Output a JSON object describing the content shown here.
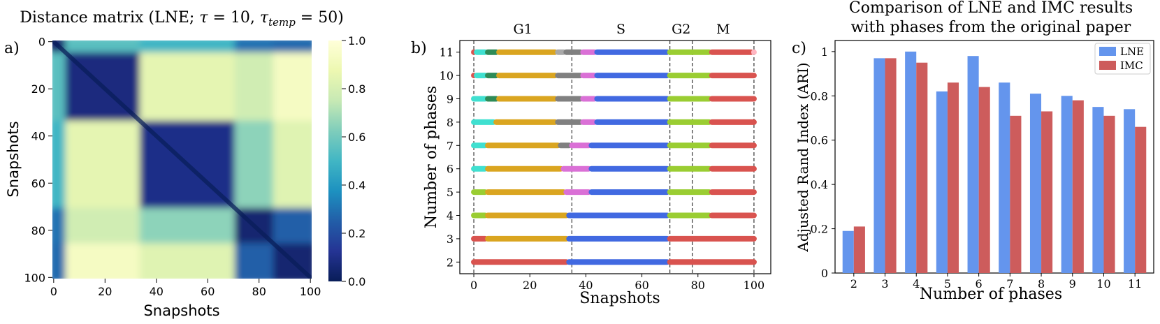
{
  "panels": {
    "a_label": "a)",
    "b_label": "b)",
    "c_label": "c)"
  },
  "chart_data": [
    {
      "type": "heatmap",
      "title": "Distance matrix (LNE; τ = 10, τtemp = 50)",
      "title_parts": {
        "prefix": "Distance matrix (LNE; ",
        "tau": "τ",
        "eq1": " = 10, ",
        "tau2": "τ",
        "sub": "temp",
        "eq2": " = 50)"
      },
      "xlabel": "Snapshots",
      "ylabel": "Snapshots",
      "xticks": [
        0,
        20,
        40,
        60,
        80,
        100
      ],
      "yticks": [
        0,
        20,
        40,
        60,
        80,
        100
      ],
      "range": [
        0,
        101
      ],
      "blocks": [
        {
          "name": "0-4",
          "start": 0,
          "end": 5
        },
        {
          "name": "5-33",
          "start": 5,
          "end": 34
        },
        {
          "name": "34-70",
          "start": 34,
          "end": 71
        },
        {
          "name": "71-85",
          "start": 71,
          "end": 86
        },
        {
          "name": "86-100",
          "start": 86,
          "end": 101
        }
      ],
      "block_distance": [
        [
          0.05,
          0.55,
          0.5,
          0.3,
          0.28
        ],
        [
          0.55,
          0.08,
          0.85,
          0.78,
          0.93
        ],
        [
          0.5,
          0.85,
          0.1,
          0.65,
          0.83
        ],
        [
          0.3,
          0.78,
          0.65,
          0.05,
          0.25
        ],
        [
          0.28,
          0.93,
          0.83,
          0.25,
          0.05
        ]
      ],
      "colorbar": {
        "ticks": [
          "0.0",
          "0.2",
          "0.4",
          "0.6",
          "0.8",
          "1.0"
        ],
        "min": 0,
        "max": 1
      },
      "colormap": "YlGnBu"
    },
    {
      "type": "scatter",
      "xlabel": "Snapshots",
      "ylabel": "Number of phases",
      "xticks": [
        0,
        20,
        40,
        60,
        80,
        100
      ],
      "yticks": [
        2,
        3,
        4,
        5,
        6,
        7,
        8,
        9,
        10,
        11
      ],
      "xlim": [
        -5,
        106
      ],
      "ylim": [
        1.5,
        11.5
      ],
      "phase_boundaries": [
        0,
        35,
        70,
        78,
        100
      ],
      "phase_labels": [
        {
          "label": "G1",
          "x": 17.5
        },
        {
          "label": "S",
          "x": 52.5
        },
        {
          "label": "G2",
          "x": 74
        },
        {
          "label": "M",
          "x": 89
        }
      ],
      "rows": [
        {
          "n": 2,
          "segments": [
            [
              0,
              33,
              "#d9534f"
            ],
            [
              34,
              69,
              "#4169e1"
            ],
            [
              70,
              100,
              "#d9534f"
            ]
          ]
        },
        {
          "n": 3,
          "segments": [
            [
              0,
              4,
              "#d9534f"
            ],
            [
              5,
              33,
              "#daa520"
            ],
            [
              34,
              69,
              "#4169e1"
            ],
            [
              70,
              100,
              "#d9534f"
            ]
          ]
        },
        {
          "n": 4,
          "segments": [
            [
              0,
              4,
              "#9acd32"
            ],
            [
              5,
              33,
              "#daa520"
            ],
            [
              34,
              69,
              "#4169e1"
            ],
            [
              70,
              84,
              "#9acd32"
            ],
            [
              85,
              100,
              "#d9534f"
            ]
          ]
        },
        {
          "n": 5,
          "segments": [
            [
              0,
              4,
              "#9acd32"
            ],
            [
              5,
              32,
              "#daa520"
            ],
            [
              33,
              41,
              "#da70d6"
            ],
            [
              42,
              69,
              "#4169e1"
            ],
            [
              70,
              84,
              "#9acd32"
            ],
            [
              85,
              100,
              "#d9534f"
            ]
          ]
        },
        {
          "n": 6,
          "segments": [
            [
              0,
              4,
              "#40e0d0"
            ],
            [
              5,
              31,
              "#daa520"
            ],
            [
              32,
              41,
              "#da70d6"
            ],
            [
              42,
              69,
              "#4169e1"
            ],
            [
              70,
              84,
              "#9acd32"
            ],
            [
              85,
              100,
              "#d9534f"
            ]
          ]
        },
        {
          "n": 7,
          "segments": [
            [
              0,
              4,
              "#40e0d0"
            ],
            [
              5,
              30,
              "#daa520"
            ],
            [
              31,
              34,
              "#808080"
            ],
            [
              35,
              41,
              "#da70d6"
            ],
            [
              42,
              69,
              "#4169e1"
            ],
            [
              70,
              84,
              "#9acd32"
            ],
            [
              85,
              100,
              "#d9534f"
            ]
          ]
        },
        {
          "n": 8,
          "segments": [
            [
              0,
              7,
              "#40e0d0"
            ],
            [
              8,
              29,
              "#daa520"
            ],
            [
              30,
              38,
              "#808080"
            ],
            [
              39,
              43,
              "#da70d6"
            ],
            [
              44,
              69,
              "#4169e1"
            ],
            [
              70,
              84,
              "#9acd32"
            ],
            [
              85,
              100,
              "#d9534f"
            ]
          ]
        },
        {
          "n": 9,
          "segments": [
            [
              0,
              4,
              "#40e0d0"
            ],
            [
              5,
              8,
              "#2e8b57"
            ],
            [
              9,
              29,
              "#daa520"
            ],
            [
              30,
              38,
              "#808080"
            ],
            [
              39,
              43,
              "#da70d6"
            ],
            [
              44,
              69,
              "#4169e1"
            ],
            [
              70,
              84,
              "#9acd32"
            ],
            [
              85,
              100,
              "#d9534f"
            ]
          ]
        },
        {
          "n": 10,
          "segments": [
            [
              0,
              0,
              "#d9534f"
            ],
            [
              1,
              4,
              "#40e0d0"
            ],
            [
              5,
              8,
              "#2e8b57"
            ],
            [
              9,
              29,
              "#daa520"
            ],
            [
              30,
              38,
              "#808080"
            ],
            [
              39,
              43,
              "#da70d6"
            ],
            [
              44,
              69,
              "#4169e1"
            ],
            [
              70,
              84,
              "#9acd32"
            ],
            [
              85,
              100,
              "#d9534f"
            ]
          ]
        },
        {
          "n": 11,
          "segments": [
            [
              0,
              0,
              "#d9534f"
            ],
            [
              1,
              4,
              "#40e0d0"
            ],
            [
              5,
              8,
              "#2e8b57"
            ],
            [
              9,
              29,
              "#daa520"
            ],
            [
              30,
              32,
              "#a9a9a9"
            ],
            [
              33,
              38,
              "#808080"
            ],
            [
              39,
              43,
              "#da70d6"
            ],
            [
              44,
              69,
              "#4169e1"
            ],
            [
              70,
              84,
              "#9acd32"
            ],
            [
              85,
              99,
              "#d9534f"
            ],
            [
              100,
              100,
              "#ffb6c1"
            ]
          ]
        }
      ]
    },
    {
      "type": "bar",
      "title_line1": "Comparison of LNE and IMC results",
      "title_line2": "with phases from the original paper",
      "xlabel": "Number of phases",
      "ylabel": "Adjusted Rand Index (ARI)",
      "categories": [
        "2",
        "3",
        "4",
        "5",
        "6",
        "7",
        "8",
        "9",
        "10",
        "11"
      ],
      "series": [
        {
          "name": "LNE",
          "color": "#6495ed",
          "values": [
            0.19,
            0.97,
            1.0,
            0.82,
            0.98,
            0.86,
            0.81,
            0.8,
            0.75,
            0.74
          ]
        },
        {
          "name": "IMC",
          "color": "#cd5c5c",
          "values": [
            0.21,
            0.97,
            0.95,
            0.86,
            0.84,
            0.71,
            0.73,
            0.78,
            0.71,
            0.66
          ]
        }
      ],
      "yticks": [
        "0",
        "0.2",
        "0.4",
        "0.6",
        "0.8",
        "1"
      ],
      "ylim": [
        0,
        1.05
      ],
      "legend": "top-right"
    }
  ]
}
